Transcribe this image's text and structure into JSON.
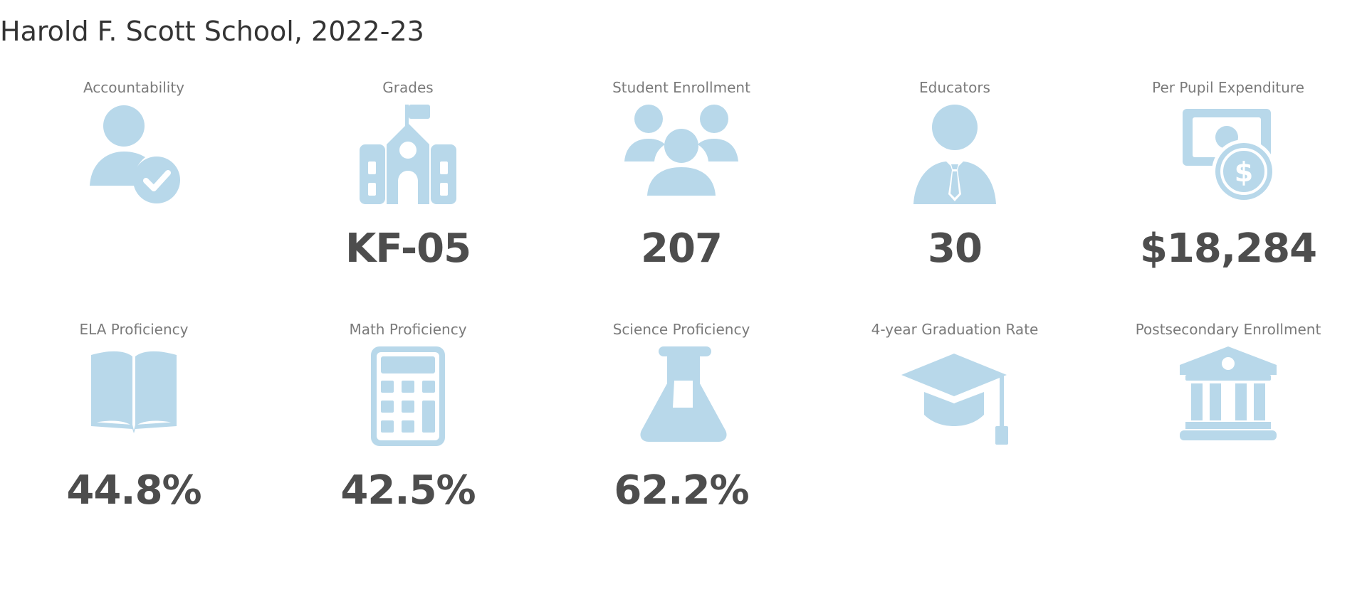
{
  "title": "Harold F. Scott School, 2022-23",
  "icon_color": "#b8d8ea",
  "row1": [
    {
      "label": "Accountability",
      "icon": "user-check-icon",
      "value": ""
    },
    {
      "label": "Grades",
      "icon": "school-icon",
      "value": "KF-05"
    },
    {
      "label": "Student Enrollment",
      "icon": "users-group-icon",
      "value": "207"
    },
    {
      "label": "Educators",
      "icon": "user-tie-icon",
      "value": "30"
    },
    {
      "label": "Per Pupil Expenditure",
      "icon": "money-dollar-icon",
      "value": "$18,284"
    }
  ],
  "row2": [
    {
      "label": "ELA Proficiency",
      "icon": "book-open-icon",
      "value": "44.8%"
    },
    {
      "label": "Math Proficiency",
      "icon": "calculator-icon",
      "value": "42.5%"
    },
    {
      "label": "Science Proficiency",
      "icon": "flask-icon",
      "value": "62.2%"
    },
    {
      "label": "4-year Graduation Rate",
      "icon": "graduation-cap-icon",
      "value": ""
    },
    {
      "label": "Postsecondary Enrollment",
      "icon": "institution-icon",
      "value": ""
    }
  ]
}
